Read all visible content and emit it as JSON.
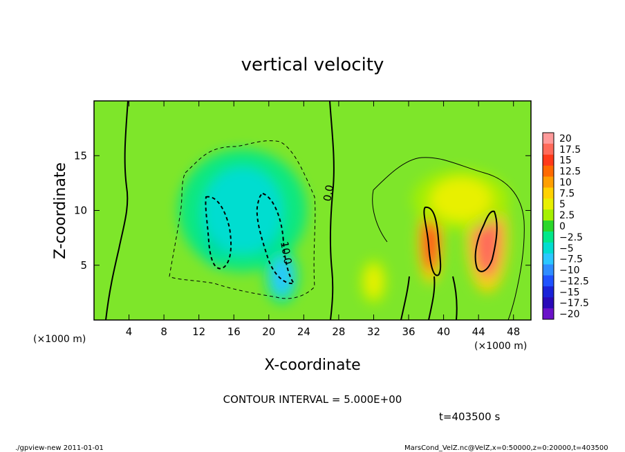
{
  "chart_data": {
    "type": "heatmap",
    "title": "vertical velocity",
    "xlabel": "X-coordinate",
    "ylabel": "Z-coordinate",
    "x_unit": "(×1000 m)",
    "y_unit": "(×1000 m)",
    "xlim": [
      0,
      50
    ],
    "ylim": [
      0,
      20
    ],
    "x_ticks": [
      "4",
      "8",
      "12",
      "16",
      "20",
      "24",
      "28",
      "32",
      "36",
      "40",
      "44",
      "48"
    ],
    "x_tick_values": [
      4,
      8,
      12,
      16,
      20,
      24,
      28,
      32,
      36,
      40,
      44,
      48
    ],
    "y_ticks": [
      "5",
      "10",
      "15"
    ],
    "y_tick_values": [
      5,
      10,
      15
    ],
    "colorbar_labels": [
      "20",
      "17.5",
      "15",
      "12.5",
      "10",
      "7.5",
      "5",
      "2.5",
      "0",
      "−2.5",
      "−5",
      "−7.5",
      "−10",
      "−12.5",
      "−15",
      "−17.5",
      "−20"
    ],
    "colorbar_colors": [
      "#ff9a9a",
      "#ff6a5a",
      "#ff3a1a",
      "#ff6a00",
      "#ff9f00",
      "#ffd200",
      "#e8f000",
      "#a6f000",
      "#2bd72b",
      "#00e88a",
      "#00ddd0",
      "#2bc7ff",
      "#2f8dff",
      "#1f52ff",
      "#1a22d8",
      "#2a0ab8",
      "#6a12c8"
    ],
    "contour_interval": "CONTOUR INTERVAL = 5.000E+00",
    "contour_label": "0.0",
    "contour_label_neg": "-10.0",
    "features": [
      {
        "x": 14.0,
        "z": 8.5,
        "value": -13.0,
        "sx": 1.3,
        "sz": 2.6
      },
      {
        "x": 19.8,
        "z": 8.8,
        "value": -11.5,
        "sx": 1.3,
        "sz": 2.6
      },
      {
        "x": 17.0,
        "z": 10.0,
        "value": -6.0,
        "sx": 4.6,
        "sz": 4.0
      },
      {
        "x": 21.5,
        "z": 4.0,
        "value": -7.0,
        "sx": 1.2,
        "sz": 1.8
      },
      {
        "x": 38.5,
        "z": 7.2,
        "value": 14.0,
        "sx": 0.9,
        "sz": 2.8
      },
      {
        "x": 45.0,
        "z": 7.5,
        "value": 16.5,
        "sx": 1.5,
        "sz": 3.6
      },
      {
        "x": 42.0,
        "z": 11.0,
        "value": 4.0,
        "sx": 3.5,
        "sz": 2.0
      },
      {
        "x": 32.0,
        "z": 3.5,
        "value": 4.0,
        "sx": 1.0,
        "sz": 1.5
      }
    ]
  },
  "time_label": "t=403500 s",
  "footer_left": "./gpview-new   2011-01-01",
  "footer_right": "MarsCond_VelZ.nc@VelZ,x=0:50000,z=0:20000,t=403500"
}
